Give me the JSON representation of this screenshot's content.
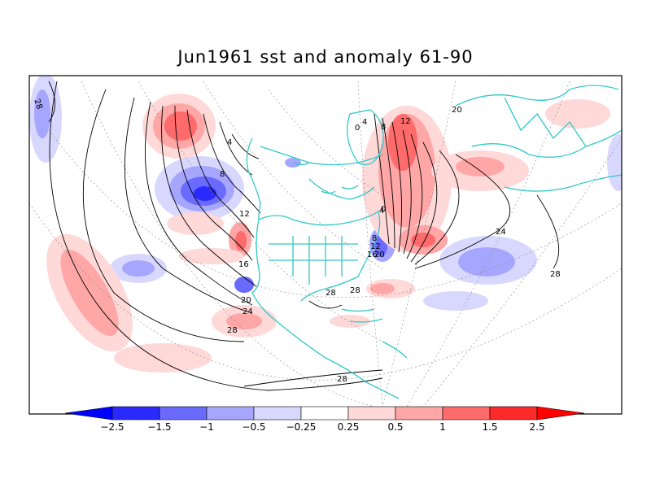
{
  "title": "Jun1961 sst and anomaly 61-90",
  "colors": {
    "anom_neg_strong": "#2a2aff",
    "anom_neg_med": "#6a6aff",
    "anom_neg_light": "#a6a6ff",
    "anom_neg_faint": "#d8d8ff",
    "anom_pos_faint": "#ffd8d8",
    "anom_pos_light": "#ffa6a6",
    "anom_pos_med": "#ff6a6a",
    "anom_pos_strong": "#ff2a2a",
    "coastline": "#30c8c8",
    "contour": "#000000",
    "grid": "#888888"
  },
  "colorbar": {
    "labels": [
      "−2.5",
      "−1.5",
      "−1",
      "−0.5",
      "−0.25",
      "0.25",
      "0.5",
      "1",
      "1.5",
      "2.5"
    ]
  },
  "contour_labels": [
    "28",
    "4",
    "8",
    "12",
    "16",
    "20",
    "24",
    "28",
    "28",
    "28",
    "0",
    "4",
    "8",
    "12",
    "20",
    "0",
    "4",
    "8",
    "12",
    "16",
    "20",
    "24",
    "28",
    "28"
  ]
}
